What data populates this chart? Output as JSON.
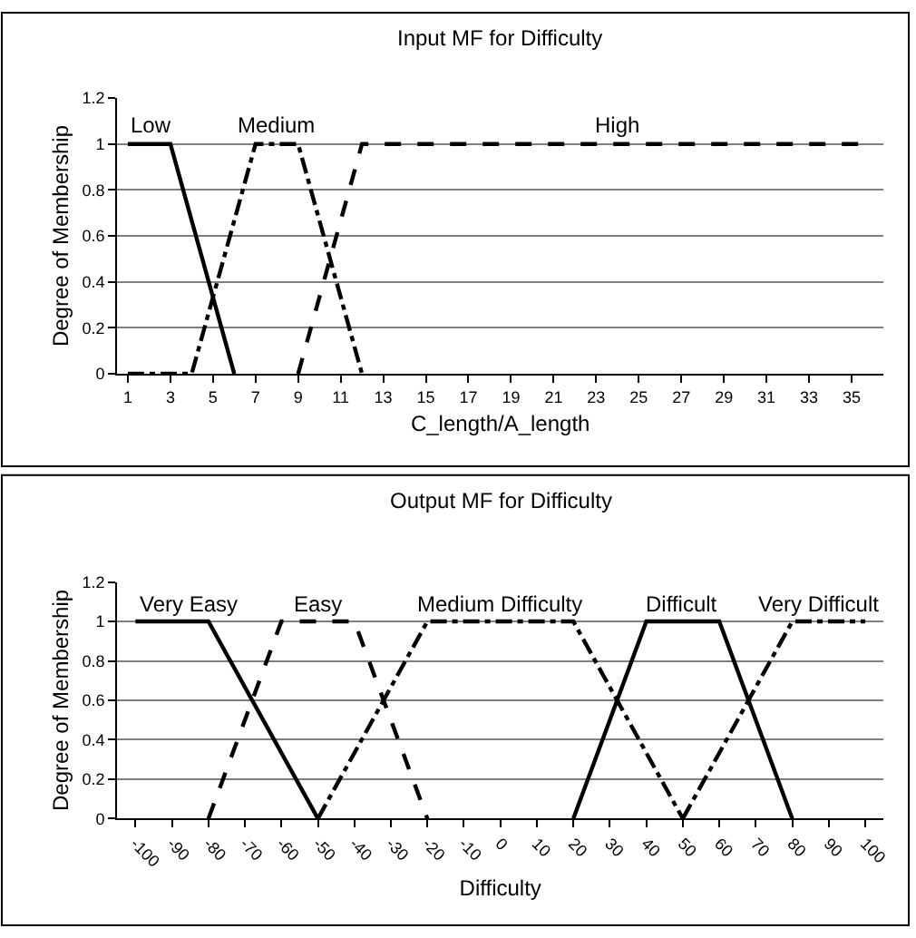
{
  "chart_data": [
    {
      "type": "line",
      "title": "Input MF for Difficulty",
      "xlabel": "C_length/A_length",
      "ylabel": "Degree of Membership",
      "xlim": [
        0.5,
        36.5
      ],
      "xticks": [
        1,
        3,
        5,
        7,
        9,
        11,
        13,
        15,
        17,
        19,
        21,
        23,
        25,
        27,
        29,
        31,
        33,
        35
      ],
      "ylim": [
        0,
        1.2
      ],
      "yticks": [
        0,
        0.2,
        0.4,
        0.6,
        0.8,
        1,
        1.2
      ],
      "grid": "y",
      "marker": "none",
      "series": [
        {
          "name": "Low",
          "color": "#000000",
          "line_style": "solid",
          "x": [
            1,
            3,
            6
          ],
          "values": [
            1,
            1,
            0
          ]
        },
        {
          "name": "Medium",
          "color": "#000000",
          "line_style": "dashdot",
          "x": [
            1,
            4,
            7,
            9,
            12
          ],
          "values": [
            0,
            0,
            1,
            1,
            0
          ]
        },
        {
          "name": "High",
          "color": "#000000",
          "line_style": "dashed",
          "x": [
            9,
            12,
            36
          ],
          "values": [
            0,
            1,
            1
          ]
        }
      ]
    },
    {
      "type": "line",
      "title": "Output MF for Difficulty",
      "xlabel": "Difficulty",
      "ylabel": "Degree of Membership",
      "xlim": [
        -105,
        105
      ],
      "xticks": [
        -100,
        -90,
        -80,
        -70,
        -60,
        -50,
        -40,
        -30,
        -20,
        -10,
        0,
        10,
        20,
        30,
        40,
        50,
        60,
        70,
        80,
        90,
        100
      ],
      "ylim": [
        0,
        1.2
      ],
      "yticks": [
        0,
        0.2,
        0.4,
        0.6,
        0.8,
        1,
        1.2
      ],
      "grid": "y",
      "marker": "none",
      "series": [
        {
          "name": "Very Easy",
          "color": "#000000",
          "line_style": "solid",
          "x": [
            -100,
            -80,
            -50
          ],
          "values": [
            1,
            1,
            0
          ]
        },
        {
          "name": "Easy",
          "color": "#000000",
          "line_style": "dashed",
          "x": [
            -80,
            -60,
            -40,
            -20
          ],
          "values": [
            0,
            1,
            1,
            0
          ]
        },
        {
          "name": "Medium Difficulty",
          "color": "#000000",
          "line_style": "dashdot",
          "x": [
            -50,
            -20,
            20,
            50
          ],
          "values": [
            0,
            1,
            1,
            0
          ]
        },
        {
          "name": "Difficult",
          "color": "#000000",
          "line_style": "solid",
          "x": [
            20,
            40,
            60,
            80
          ],
          "values": [
            0,
            1,
            1,
            0
          ]
        },
        {
          "name": "Very Difficult",
          "color": "#000000",
          "line_style": "dashdot",
          "x": [
            50,
            80,
            100
          ],
          "values": [
            0,
            1,
            1
          ]
        }
      ]
    }
  ]
}
